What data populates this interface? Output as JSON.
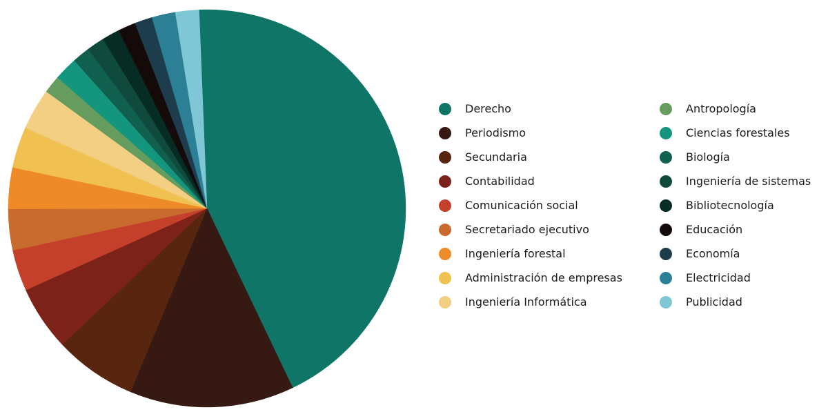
{
  "chart_data": {
    "type": "pie",
    "title": "",
    "slices": [
      {
        "label": "Derecho",
        "value": 45.5,
        "color": "#0f7567"
      },
      {
        "label": "Periodismo",
        "value": 14.0,
        "color": "#351912"
      },
      {
        "label": "Secundaria",
        "value": 7.0,
        "color": "#58260f"
      },
      {
        "label": "Contabilidad",
        "value": 5.5,
        "color": "#7c2218"
      },
      {
        "label": "Comunicación social",
        "value": 3.5,
        "color": "#c4402b"
      },
      {
        "label": "Secretariado ejecutivo",
        "value": 3.5,
        "color": "#c96a2f"
      },
      {
        "label": "Ingeniería forestal",
        "value": 3.5,
        "color": "#ee8a28"
      },
      {
        "label": "Administración de empresas",
        "value": 3.5,
        "color": "#f0c050"
      },
      {
        "label": "Ingeniería Informática",
        "value": 3.5,
        "color": "#f2cf82"
      },
      {
        "label": "Antropología",
        "value": 1.5,
        "color": "#669c5d"
      },
      {
        "label": "Ciencias forestales",
        "value": 2.0,
        "color": "#14957d"
      },
      {
        "label": "Biología",
        "value": 1.5,
        "color": "#11604f"
      },
      {
        "label": "Ingeniería de sistemas",
        "value": 1.5,
        "color": "#0f4a3d"
      },
      {
        "label": "Bibliotecnología",
        "value": 1.5,
        "color": "#062c23"
      },
      {
        "label": "Educación",
        "value": 1.5,
        "color": "#140a0a"
      },
      {
        "label": "Economía",
        "value": 1.5,
        "color": "#1d3d4c"
      },
      {
        "label": "Electricidad",
        "value": 2.0,
        "color": "#2b8095"
      },
      {
        "label": "Publicidad",
        "value": 2.0,
        "color": "#80c7d6"
      }
    ],
    "legend": {
      "columns": [
        [
          "Derecho",
          "Periodismo",
          "Secundaria",
          "Contabilidad",
          "Comunicación social",
          "Secretariado ejecutivo",
          "Ingeniería forestal",
          "Administración de empresas",
          "Ingeniería Informática"
        ],
        [
          "Antropología",
          "Ciencias forestales",
          "Biología",
          "Ingeniería de sistemas",
          "Bibliotecnología",
          "Educación",
          "Economía",
          "Electricidad",
          "Publicidad"
        ]
      ],
      "position": "right"
    }
  }
}
